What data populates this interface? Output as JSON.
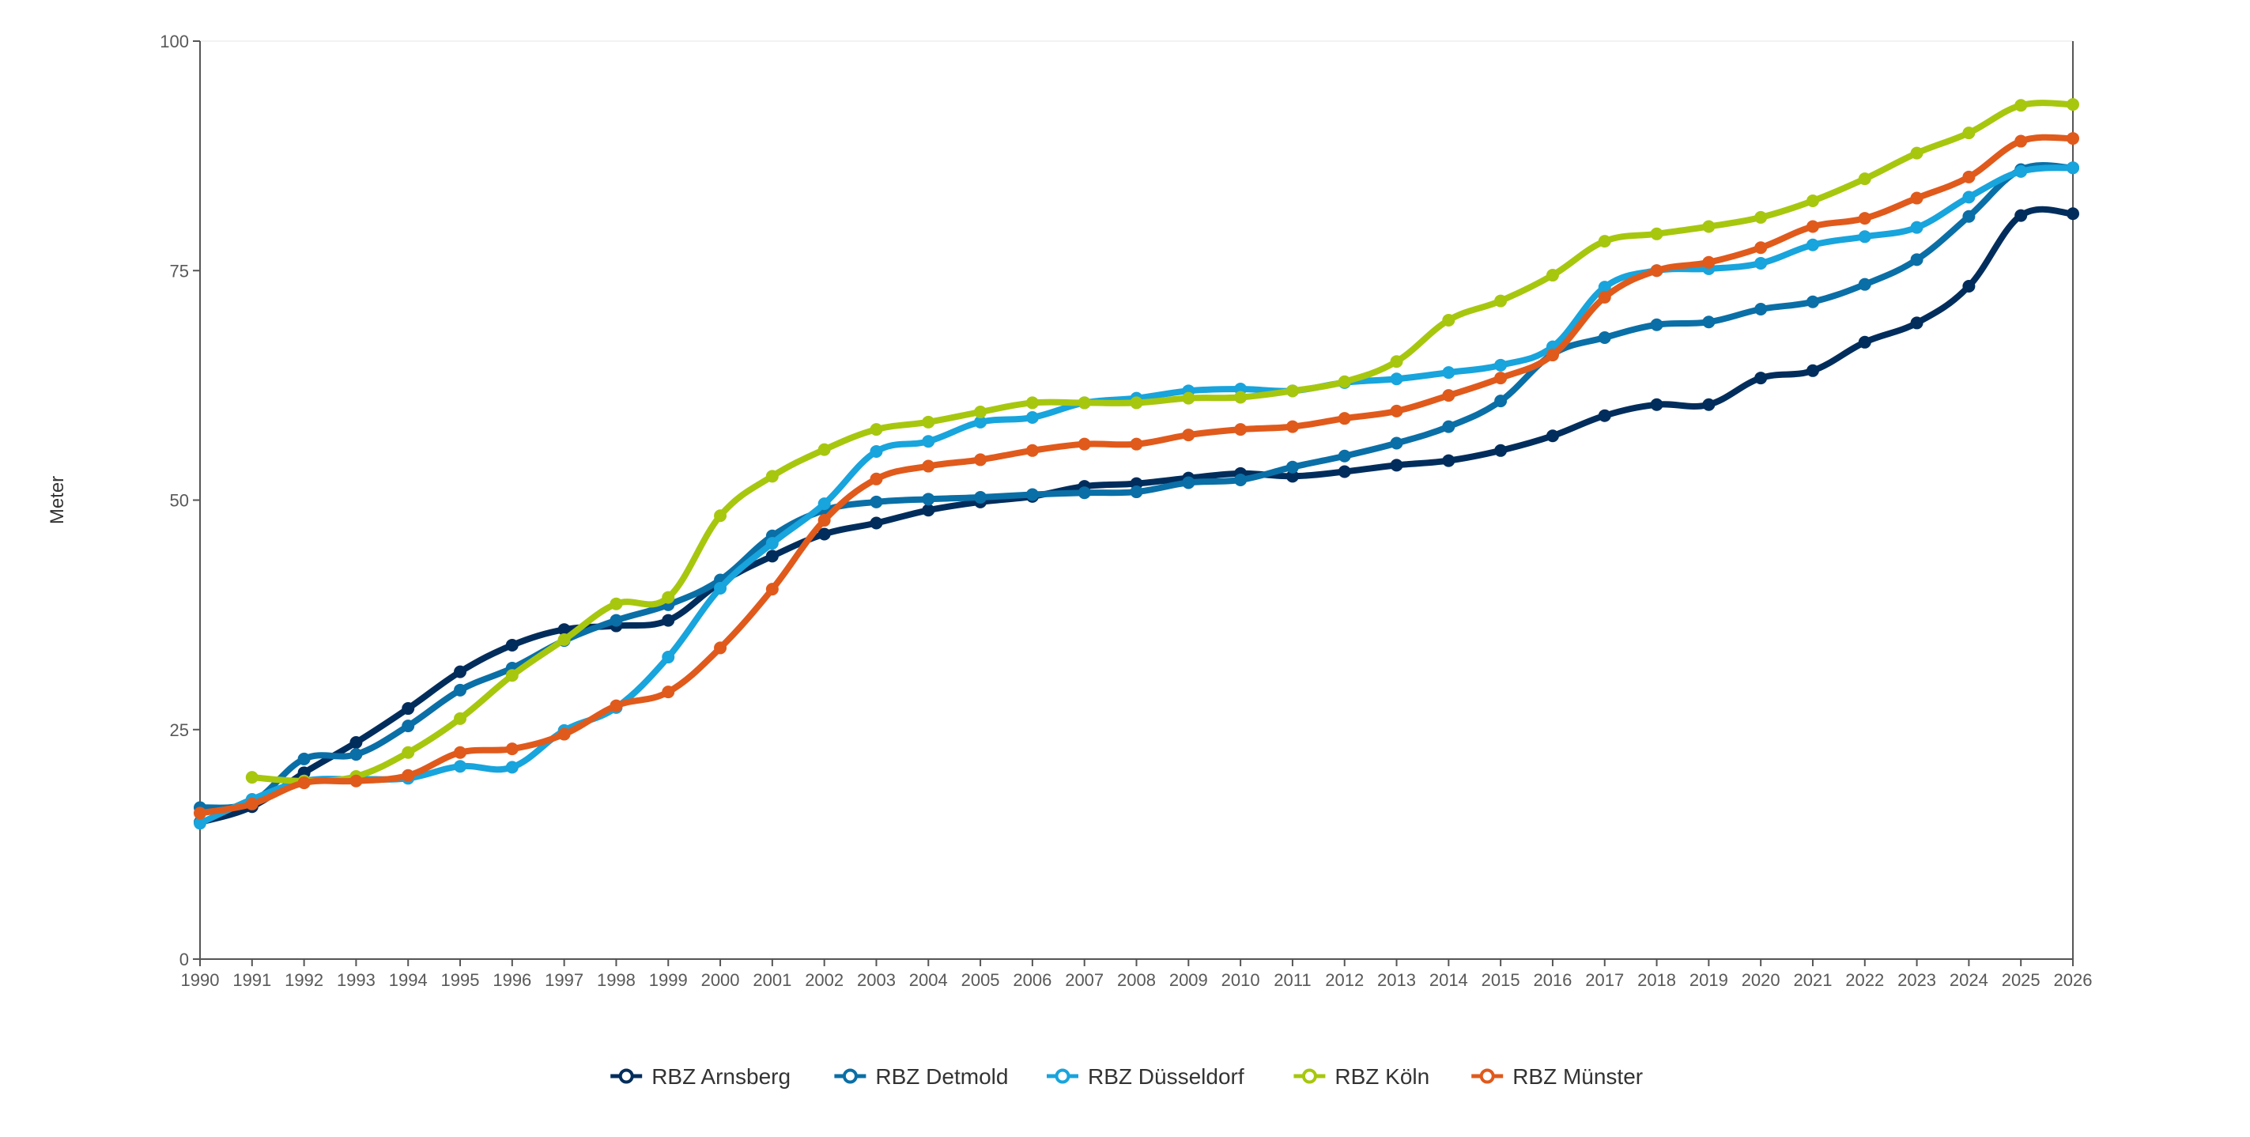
{
  "chart_data": {
    "type": "line",
    "title": "",
    "xlabel": "",
    "ylabel": "Meter",
    "ylim": [
      0,
      100
    ],
    "xlim": [
      1990,
      2026
    ],
    "yticks": [
      0,
      25,
      50,
      75,
      100
    ],
    "x": [
      1990,
      1991,
      1992,
      1993,
      1994,
      1995,
      1996,
      1997,
      1998,
      1999,
      2000,
      2001,
      2002,
      2003,
      2004,
      2005,
      2006,
      2007,
      2008,
      2009,
      2010,
      2011,
      2012,
      2013,
      2014,
      2015,
      2016,
      2017,
      2018,
      2019,
      2020,
      2021,
      2022,
      2023,
      2024,
      2025,
      2026
    ],
    "grid": false,
    "legend_position": "bottom",
    "series": [
      {
        "name": "RBZ Arnsberg",
        "color": "#002d5c",
        "x": [
          1990,
          1991,
          1992,
          1993,
          1994,
          1995,
          1996,
          1997,
          1998,
          1999,
          2000,
          2001,
          2002,
          2003,
          2004,
          2005,
          2006,
          2007,
          2008,
          2009,
          2010,
          2011,
          2012,
          2013,
          2014,
          2015,
          2016,
          2017,
          2018,
          2019,
          2020,
          2021,
          2022,
          2023,
          2024,
          2025,
          2026
        ],
        "values": [
          14.9,
          16.6,
          20.3,
          23.6,
          27.3,
          31.3,
          34.2,
          35.9,
          36.3,
          36.9,
          41.0,
          43.9,
          46.3,
          47.5,
          48.9,
          49.8,
          50.4,
          51.5,
          51.8,
          52.4,
          52.9,
          52.6,
          53.1,
          53.8,
          54.3,
          55.4,
          57.0,
          59.2,
          60.4,
          60.4,
          63.3,
          64.1,
          67.2,
          69.3,
          73.3,
          81.0,
          81.2
        ]
      },
      {
        "name": "RBZ Detmold",
        "color": "#0a6fa6",
        "x": [
          1990,
          1991,
          1992,
          1993,
          1994,
          1995,
          1996,
          1997,
          1998,
          1999,
          2000,
          2001,
          2002,
          2003,
          2004,
          2005,
          2006,
          2007,
          2008,
          2009,
          2010,
          2011,
          2012,
          2013,
          2014,
          2015,
          2016,
          2017,
          2018,
          2019,
          2020,
          2021,
          2022,
          2023,
          2024,
          2025,
          2026
        ],
        "values": [
          16.5,
          17.1,
          21.8,
          22.3,
          25.4,
          29.3,
          31.7,
          34.7,
          36.9,
          38.6,
          41.3,
          46.1,
          48.9,
          49.8,
          50.1,
          50.3,
          50.6,
          50.8,
          50.9,
          51.9,
          52.2,
          53.6,
          54.8,
          56.2,
          58.0,
          60.8,
          65.9,
          67.7,
          69.1,
          69.4,
          70.8,
          71.6,
          73.5,
          76.2,
          80.9,
          86.0,
          86.2
        ]
      },
      {
        "name": "RBZ Düsseldorf",
        "color": "#18a4dc",
        "x": [
          1990,
          1991,
          1992,
          1993,
          1994,
          1995,
          1996,
          1997,
          1998,
          1999,
          2000,
          2001,
          2002,
          2003,
          2004,
          2005,
          2006,
          2007,
          2008,
          2009,
          2010,
          2011,
          2012,
          2013,
          2014,
          2015,
          2016,
          2017,
          2018,
          2019,
          2020,
          2021,
          2022,
          2023,
          2024,
          2025,
          2026
        ],
        "values": [
          14.8,
          17.4,
          19.4,
          19.6,
          19.7,
          21.0,
          20.9,
          24.9,
          27.4,
          32.9,
          40.4,
          45.3,
          49.6,
          55.3,
          56.4,
          58.5,
          59.0,
          60.6,
          61.1,
          61.9,
          62.1,
          61.9,
          62.8,
          63.2,
          63.9,
          64.7,
          66.7,
          73.2,
          75.0,
          75.2,
          75.8,
          77.8,
          78.7,
          79.7,
          83.0,
          85.8,
          86.2
        ]
      },
      {
        "name": "RBZ Köln",
        "color": "#a7c70e",
        "x": [
          1991,
          1992,
          1993,
          1994,
          1995,
          1996,
          1997,
          1998,
          1999,
          2000,
          2001,
          2002,
          2003,
          2004,
          2005,
          2006,
          2007,
          2008,
          2009,
          2010,
          2011,
          2012,
          2013,
          2014,
          2015,
          2016,
          2017,
          2018,
          2019,
          2020,
          2021,
          2022,
          2023,
          2024,
          2025,
          2026
        ],
        "values": [
          19.8,
          19.4,
          19.9,
          22.5,
          26.2,
          30.9,
          34.8,
          38.7,
          39.4,
          48.3,
          52.6,
          55.5,
          57.7,
          58.5,
          59.6,
          60.6,
          60.6,
          60.6,
          61.1,
          61.2,
          61.9,
          62.9,
          65.1,
          69.6,
          71.7,
          74.5,
          78.2,
          79.0,
          79.8,
          80.8,
          82.6,
          85.0,
          87.8,
          90.0,
          93.0,
          93.1
        ]
      },
      {
        "name": "RBZ Münster",
        "color": "#e05a1c",
        "x": [
          1990,
          1991,
          1992,
          1993,
          1994,
          1995,
          1996,
          1997,
          1998,
          1999,
          2000,
          2001,
          2002,
          2003,
          2004,
          2005,
          2006,
          2007,
          2008,
          2009,
          2010,
          2011,
          2012,
          2013,
          2014,
          2015,
          2016,
          2017,
          2018,
          2019,
          2020,
          2021,
          2022,
          2023,
          2024,
          2025,
          2026
        ],
        "values": [
          15.9,
          16.9,
          19.2,
          19.4,
          20.0,
          22.5,
          22.9,
          24.5,
          27.6,
          29.1,
          33.9,
          40.3,
          47.8,
          52.3,
          53.7,
          54.4,
          55.4,
          56.1,
          56.1,
          57.1,
          57.7,
          58.0,
          58.9,
          59.7,
          61.4,
          63.3,
          65.8,
          72.1,
          75.0,
          75.9,
          77.5,
          79.8,
          80.7,
          82.9,
          85.2,
          89.1,
          89.4
        ]
      }
    ]
  }
}
